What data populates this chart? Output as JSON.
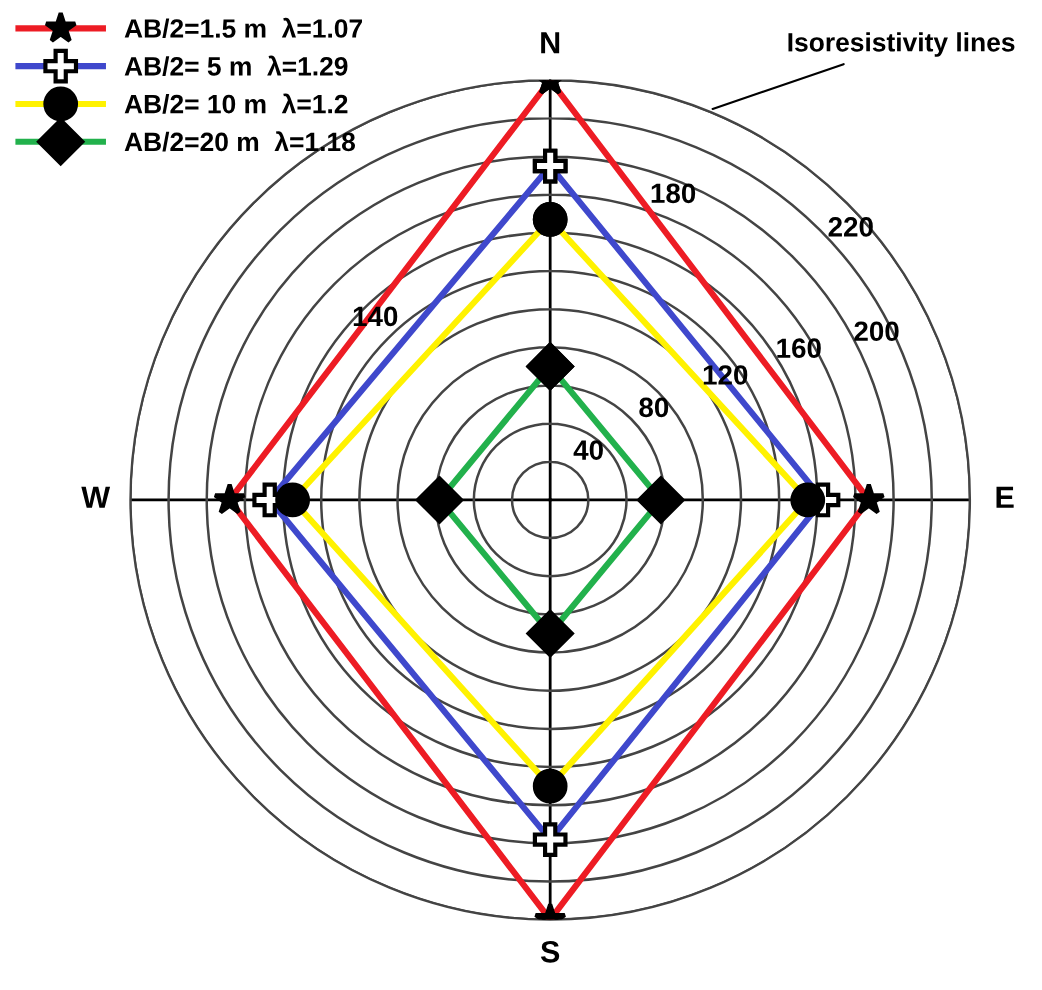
{
  "chart_data": {
    "type": "radar",
    "categories": [
      "N",
      "E",
      "S",
      "W"
    ],
    "series": [
      {
        "name": "AB/2=1.5 m  λ=1.07",
        "color": "#ed1c24",
        "marker": "star",
        "values": [
          220,
          167,
          220,
          168
        ]
      },
      {
        "name": "AB/2= 5 m  λ=1.29",
        "color": "#3f48cc",
        "marker": "cross",
        "values": [
          175,
          143,
          178,
          147
        ]
      },
      {
        "name": "AB/2= 10 m  λ=1.2",
        "color": "#fff200",
        "marker": "circle",
        "values": [
          147,
          135,
          150,
          135
        ]
      },
      {
        "name": "AB/2=20 m  λ=1.18",
        "color": "#22b14c",
        "marker": "diamond",
        "values": [
          70,
          58,
          70,
          58
        ]
      }
    ],
    "ylim": [
      0,
      220
    ],
    "yticks": [
      40,
      80,
      120,
      140,
      160,
      180,
      200,
      220
    ],
    "grid": true,
    "legend": "top left",
    "line_style": "solid",
    "annotations": [
      "Isoresistivity lines"
    ]
  }
}
